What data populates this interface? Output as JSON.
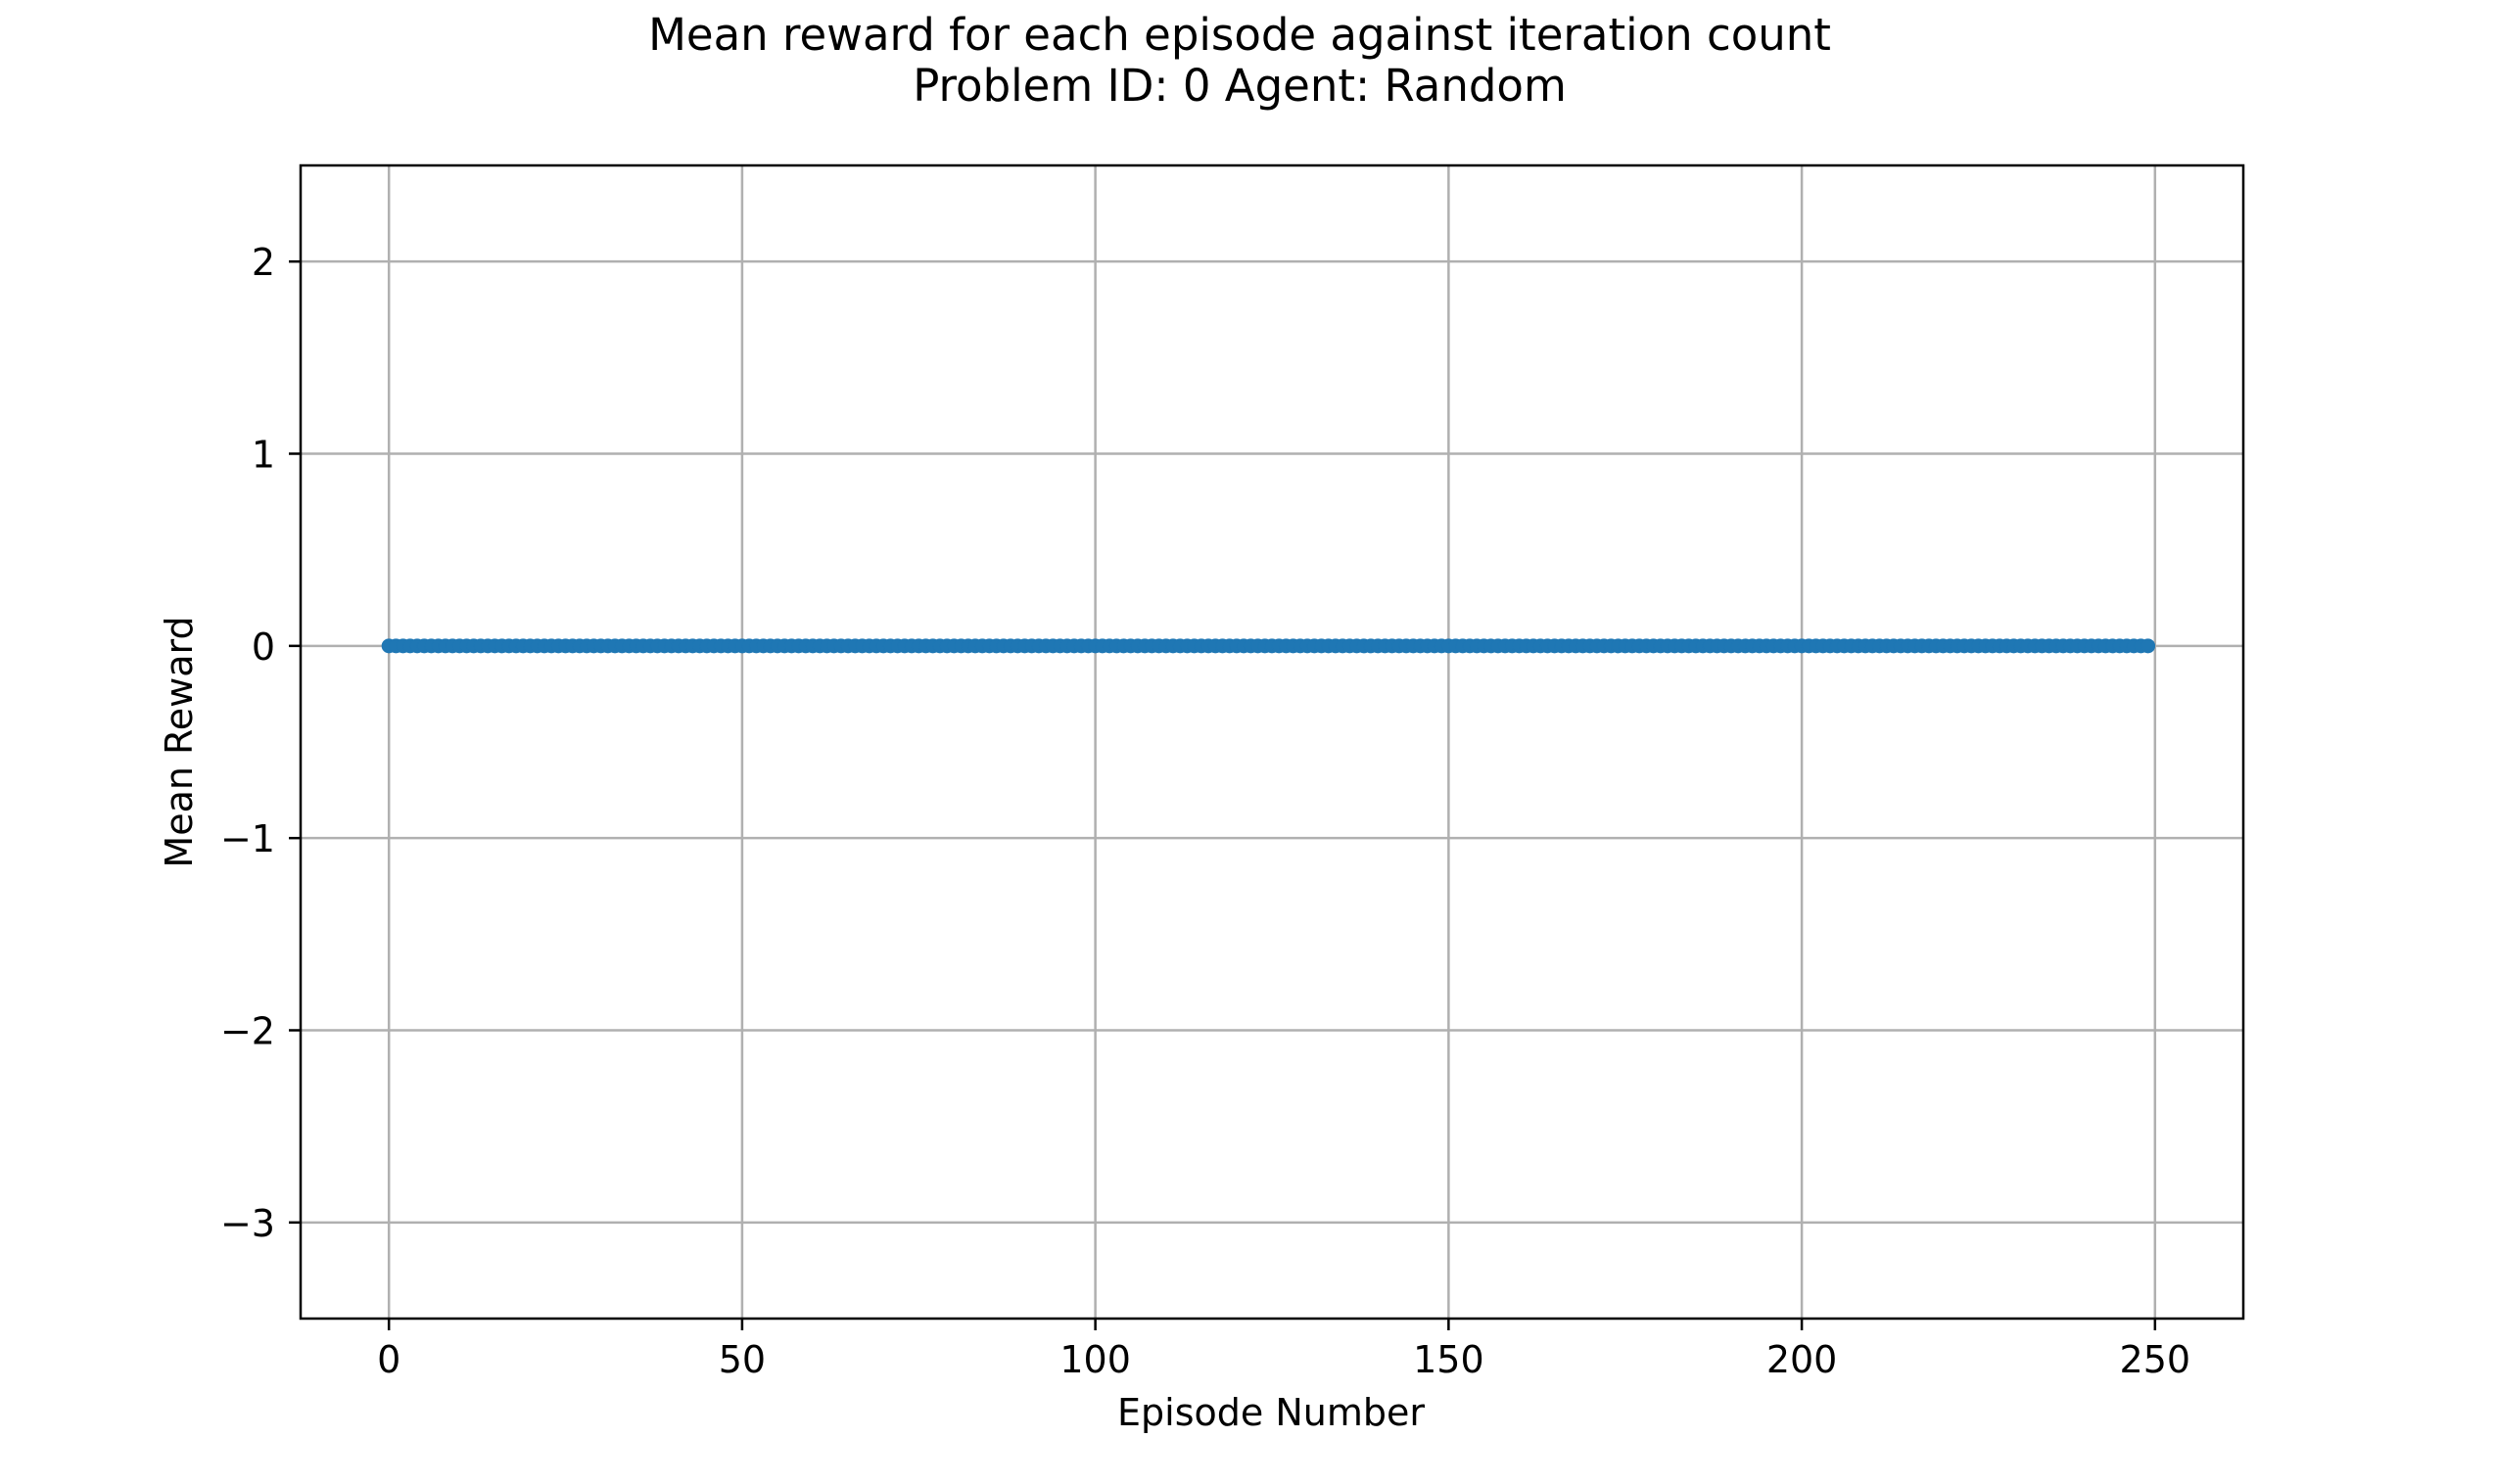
{
  "chart_data": {
    "type": "scatter",
    "title": "Mean reward for each episode against iteration count",
    "subtitle": "Problem ID: 0 Agent: Random",
    "xlabel": "Episode Number",
    "ylabel": "Mean Reward",
    "xlim": [
      -12.5,
      262.5
    ],
    "ylim": [
      -3.5,
      2.5
    ],
    "xticks": [
      0,
      50,
      100,
      150,
      200,
      250
    ],
    "xtick_labels": [
      "0",
      "50",
      "100",
      "150",
      "200",
      "250"
    ],
    "yticks": [
      -3,
      -2,
      -1,
      0,
      1,
      2
    ],
    "ytick_labels": [
      "−3",
      "−2",
      "−1",
      "0",
      "1",
      "2"
    ],
    "grid": true,
    "colors": {
      "series": "#1f77b4",
      "grid": "#b0b0b0",
      "axes": "#000000"
    },
    "series": [
      {
        "x_start": 0,
        "x_end": 249,
        "x_step": 1,
        "y_constant": 0
      }
    ]
  }
}
